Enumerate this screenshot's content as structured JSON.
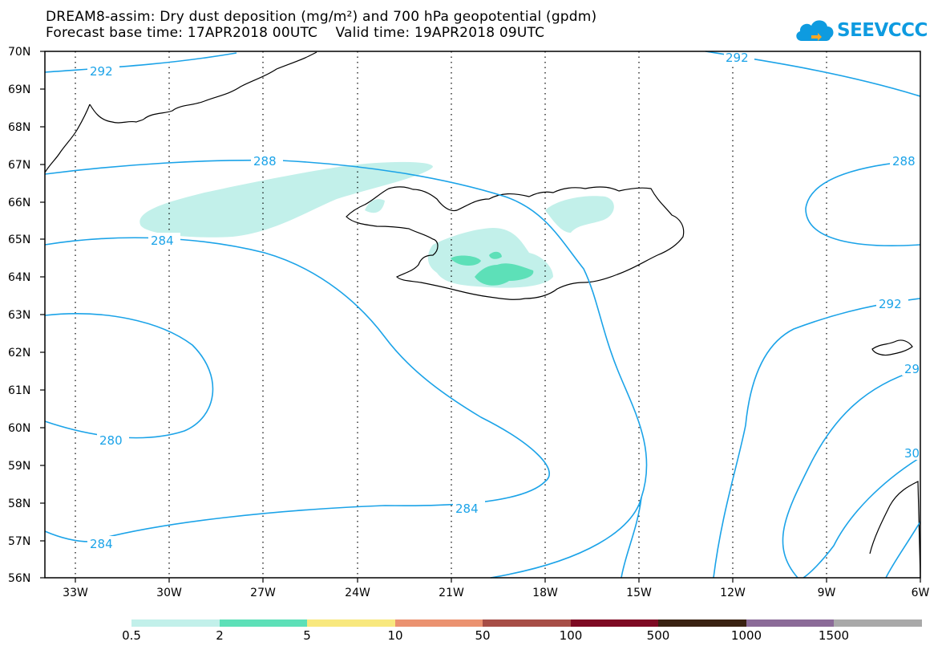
{
  "header": {
    "title_line1": "DREAM8-assim: Dry dust deposition (mg/m²) and 700 hPa geopotential (gpdm)",
    "title_line2": "Forecast base time: 17APR2018 00UTC    Valid time: 19APR2018 09UTC"
  },
  "logo": {
    "text": "SEEVCCC",
    "icon": "cloud-logo-icon",
    "color": "#0e9be0"
  },
  "map": {
    "lat_labels": [
      "70N",
      "69N",
      "68N",
      "67N",
      "66N",
      "65N",
      "64N",
      "63N",
      "62N",
      "61N",
      "60N",
      "59N",
      "58N",
      "57N",
      "56N"
    ],
    "lon_labels": [
      "33W",
      "30W",
      "27W",
      "24W",
      "21W",
      "18W",
      "15W",
      "12W",
      "9W",
      "6W"
    ],
    "contour_color": "#1ba3e8",
    "contour_labels": [
      "292",
      "292",
      "288",
      "288",
      "284",
      "280",
      "284",
      "284",
      "292",
      "29",
      "30"
    ]
  },
  "legend": {
    "thresholds": [
      "0.5",
      "2",
      "5",
      "10",
      "50",
      "100",
      "500",
      "1000",
      "1500"
    ],
    "colors": [
      "#c2f0ea",
      "#5de0b8",
      "#f8e87e",
      "#eb9270",
      "#a74e47",
      "#7e0a23",
      "#3a2212",
      "#8b6b98",
      "#a9a9a9"
    ]
  }
}
